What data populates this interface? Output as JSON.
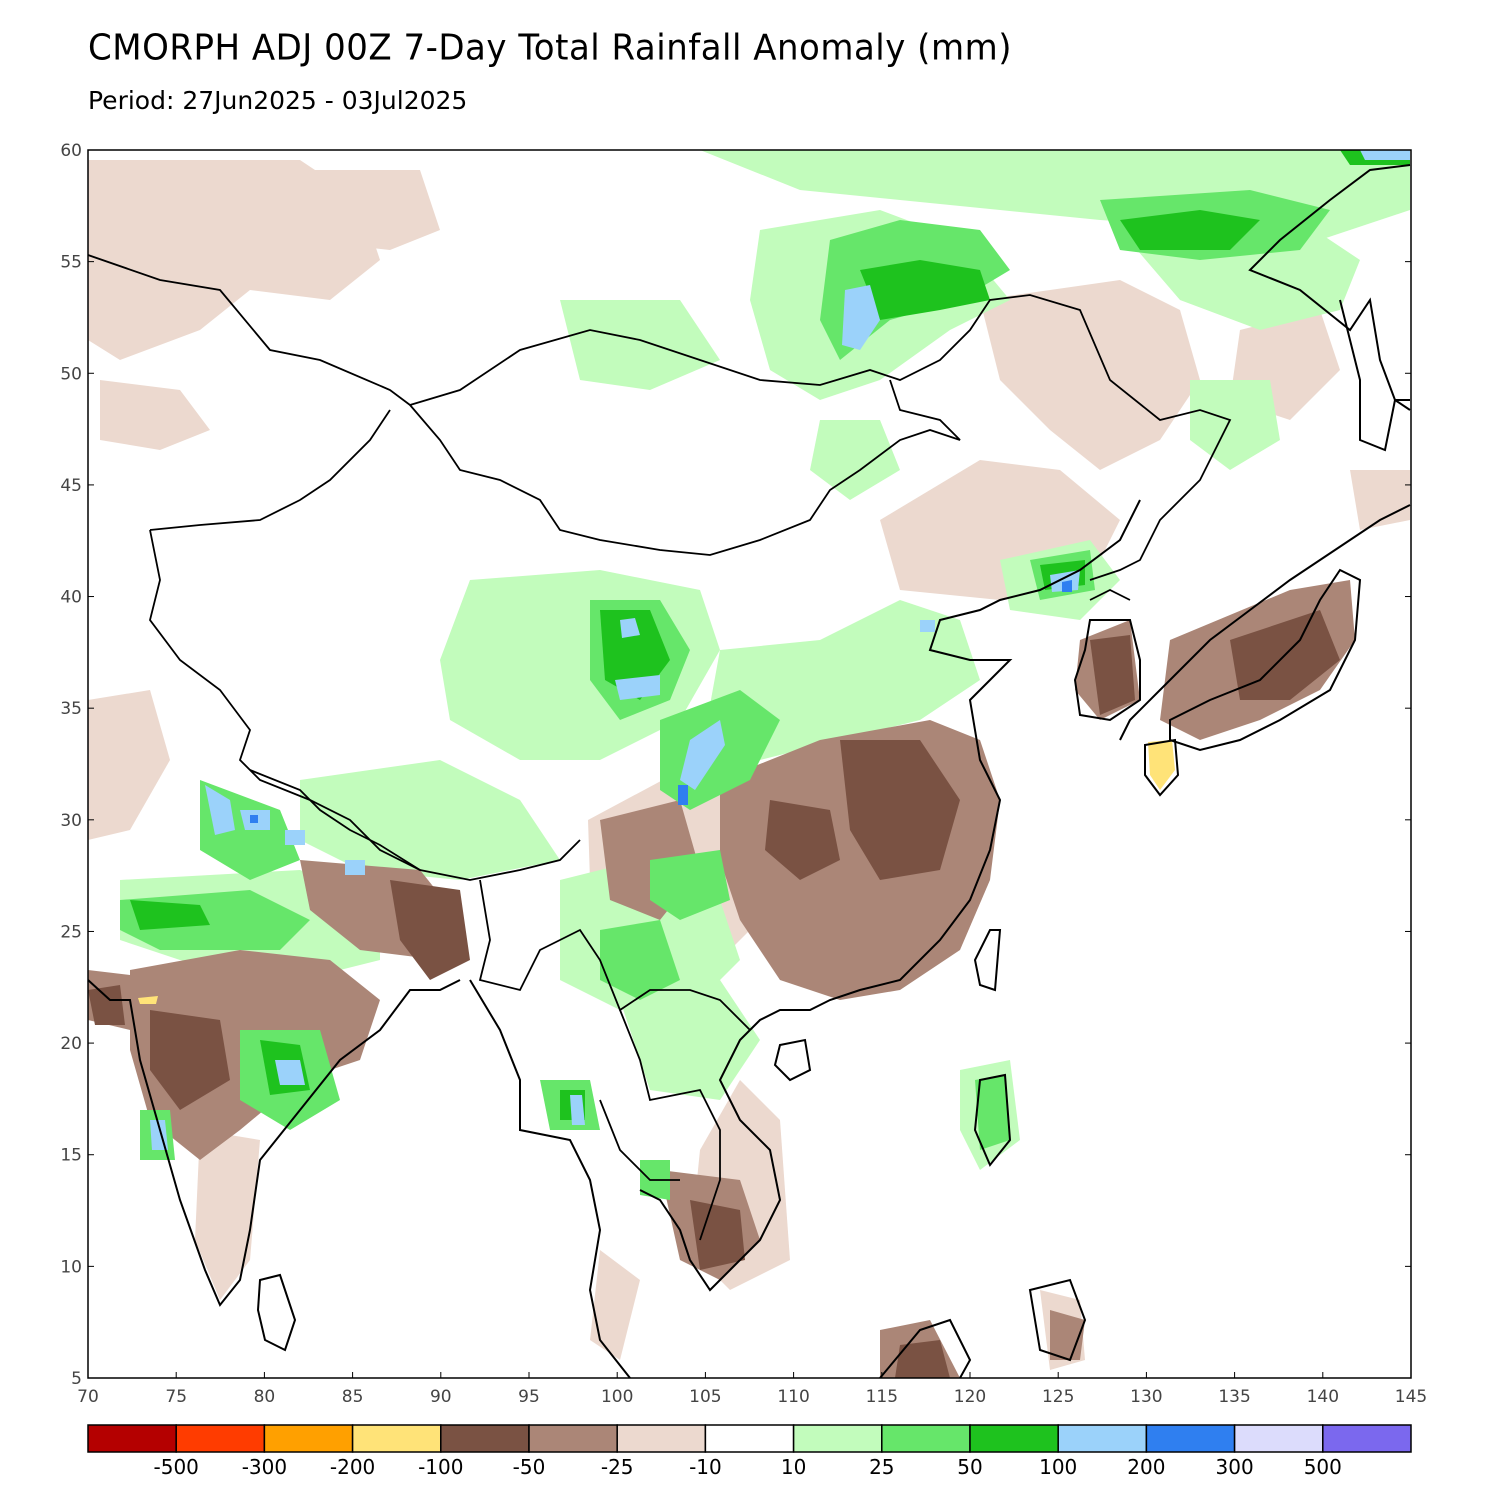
{
  "header": {
    "title": "CMORPH ADJ 00Z 7-Day Total Rainfall Anomaly (mm)",
    "period": "Period: 27Jun2025 - 03Jul2025"
  },
  "map": {
    "lat_ticks": [
      "60",
      "55",
      "50",
      "45",
      "40",
      "35",
      "30",
      "25",
      "20",
      "15",
      "10",
      "5"
    ],
    "lon_ticks": [
      "70",
      "75",
      "80",
      "85",
      "90",
      "95",
      "100",
      "105",
      "110",
      "115",
      "120",
      "125",
      "130",
      "135",
      "140",
      "145"
    ],
    "lat_range": [
      5,
      60
    ],
    "lon_range": [
      70,
      145
    ],
    "colors": {
      "dry_strong": "#7a5243",
      "dry_moderate": "#ab8677",
      "dry_light": "#ecd9cf",
      "wet_light": "#c2fcbc",
      "wet_moderate": "#66e66a",
      "wet_strong": "#1ec21e",
      "wet_heavy": "#9bd2fa",
      "wet_extreme": "#2f7ff0",
      "land_border": "#000000",
      "admin_border": "#9a9a9a"
    }
  },
  "legend": {
    "colors": [
      "#b40000",
      "#ff3c00",
      "#ffa000",
      "#ffe378",
      "#7a5243",
      "#ab8677",
      "#ecd9cf",
      "#ffffff",
      "#c2fcbc",
      "#66e66a",
      "#1ec21e",
      "#9bd2fa",
      "#2f7ff0",
      "#dcdcfc",
      "#7b68ee"
    ],
    "labels": [
      "-500",
      "-300",
      "-200",
      "-100",
      "-50",
      "-25",
      "-10",
      "10",
      "25",
      "50",
      "100",
      "200",
      "300",
      "500"
    ]
  }
}
